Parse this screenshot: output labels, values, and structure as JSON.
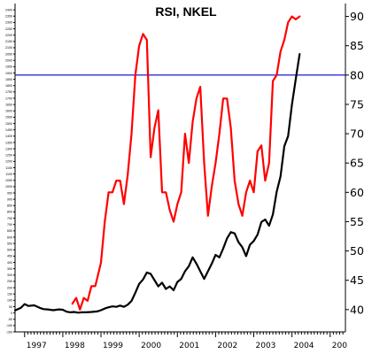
{
  "chart_data": {
    "type": "line",
    "title": "RSI, NKEL",
    "xlabel": "",
    "ylabel": "",
    "grid": false,
    "legend": "none",
    "x_ticks": [
      "1997",
      "1998",
      "1999",
      "2000",
      "2001",
      "2002",
      "2003",
      "2004",
      "200"
    ],
    "x_range": [
      1996.75,
      2005.4
    ],
    "left_axis": {
      "range": [
        -150,
        2450
      ],
      "ticks": [
        "-150",
        "-100",
        "-50",
        "0",
        "50",
        "100",
        "150",
        "200",
        "250",
        "300",
        "350",
        "400",
        "450",
        "500",
        "550",
        "600",
        "650",
        "700",
        "750",
        "800",
        "850",
        "900",
        "950",
        "1000",
        "1050",
        "1100",
        "1150",
        "1200",
        "1250",
        "1300",
        "1350",
        "1400",
        "1450",
        "1500",
        "1550",
        "1600",
        "1650",
        "1700",
        "1750",
        "1800",
        "1850",
        "1900",
        "1950",
        "2000",
        "2050",
        "2100",
        "2150",
        "2200",
        "2250",
        "2300",
        "2350",
        "2400"
      ]
    },
    "right_axis": {
      "range": [
        36.2,
        92.2
      ],
      "ticks": [
        "40",
        "45",
        "50",
        "55",
        "60",
        "65",
        "70",
        "75",
        "80",
        "85",
        "90"
      ]
    },
    "reference_line": {
      "axis": "right",
      "value": 80,
      "color": "#0000cc"
    },
    "series": [
      {
        "color": "#000000",
        "axis": "left",
        "x": [
          1996.75,
          1996.9,
          1997.0,
          1997.1,
          1997.25,
          1997.4,
          1997.5,
          1997.6,
          1997.75,
          1997.9,
          1998.0,
          1998.1,
          1998.2,
          1998.3,
          1998.4,
          1998.5,
          1998.6,
          1998.75,
          1998.9,
          1999.0,
          1999.1,
          1999.2,
          1999.3,
          1999.4,
          1999.5,
          1999.6,
          1999.7,
          1999.8,
          1999.9,
          2000.0,
          2000.1,
          2000.2,
          2000.3,
          2000.4,
          2000.5,
          2000.6,
          2000.7,
          2000.8,
          2000.9,
          2001.0,
          2001.1,
          2001.2,
          2001.3,
          2001.4,
          2001.5,
          2001.6,
          2001.7,
          2001.8,
          2001.9,
          2002.0,
          2002.1,
          2002.2,
          2002.3,
          2002.4,
          2002.5,
          2002.6,
          2002.7,
          2002.8,
          2002.9,
          2003.0,
          2003.1,
          2003.2,
          2003.3,
          2003.4,
          2003.5,
          2003.6,
          2003.7,
          2003.8,
          2003.9,
          2004.0,
          2004.1,
          2004.2
        ],
        "values": [
          20,
          40,
          70,
          55,
          60,
          40,
          30,
          28,
          22,
          28,
          25,
          10,
          5,
          8,
          2,
          5,
          5,
          8,
          12,
          22,
          35,
          45,
          52,
          48,
          58,
          48,
          65,
          95,
          160,
          230,
          265,
          320,
          310,
          260,
          210,
          240,
          190,
          210,
          180,
          245,
          270,
          330,
          370,
          440,
          390,
          330,
          270,
          330,
          390,
          460,
          440,
          510,
          590,
          640,
          630,
          560,
          520,
          450,
          540,
          570,
          620,
          720,
          740,
          690,
          780,
          960,
          1080,
          1320,
          1400,
          1650,
          1850,
          2050
        ]
      },
      {
        "color": "#ff0000",
        "axis": "right",
        "x": [
          1998.25,
          1998.35,
          1998.45,
          1998.55,
          1998.65,
          1998.75,
          1998.85,
          1999.0,
          1999.1,
          1999.2,
          1999.3,
          1999.4,
          1999.5,
          1999.6,
          1999.7,
          1999.8,
          1999.9,
          2000.0,
          2000.1,
          2000.2,
          2000.3,
          2000.4,
          2000.5,
          2000.6,
          2000.7,
          2000.8,
          2000.9,
          2001.0,
          2001.1,
          2001.2,
          2001.3,
          2001.4,
          2001.5,
          2001.6,
          2001.7,
          2001.8,
          2001.9,
          2002.0,
          2002.1,
          2002.2,
          2002.3,
          2002.4,
          2002.5,
          2002.6,
          2002.7,
          2002.8,
          2002.9,
          2003.0,
          2003.1,
          2003.2,
          2003.3,
          2003.4,
          2003.5,
          2003.6,
          2003.7,
          2003.8,
          2003.9,
          2004.0,
          2004.1,
          2004.2
        ],
        "values": [
          41,
          42,
          40,
          42,
          41.5,
          44,
          44,
          48,
          55,
          60,
          60,
          62,
          62,
          58,
          63,
          70,
          80,
          85,
          87,
          86,
          66,
          71,
          74,
          60,
          60,
          57,
          55,
          58,
          60,
          70,
          65,
          72,
          76,
          78,
          65,
          56,
          61,
          65,
          70,
          76,
          76,
          71,
          62,
          58,
          56,
          60,
          62,
          60,
          67,
          68,
          62,
          65,
          79,
          80,
          84,
          86,
          89,
          90,
          89.5,
          90
        ]
      }
    ]
  }
}
